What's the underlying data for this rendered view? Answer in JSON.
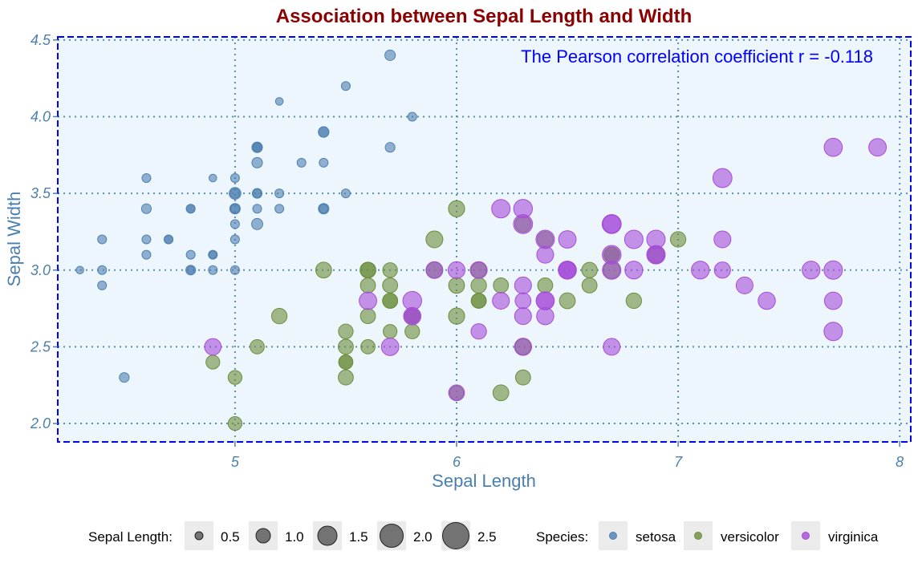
{
  "chart_data": {
    "type": "scatter",
    "title": "Association between Sepal Length and Width",
    "xlabel": "Sepal Length",
    "ylabel": "Sepal Width",
    "annotation": "The Pearson correlation coefficient r =  -0.118",
    "xlim": [
      4.2,
      8.05
    ],
    "ylim": [
      1.88,
      4.52
    ],
    "x_ticks": [
      "5",
      "6",
      "7",
      "8"
    ],
    "x_tick_values": [
      5,
      6,
      7,
      8
    ],
    "y_ticks": [
      "2.0",
      "2.5",
      "3.0",
      "3.5",
      "4.0",
      "4.5"
    ],
    "y_tick_values": [
      2.0,
      2.5,
      3.0,
      3.5,
      4.0,
      4.5
    ],
    "grid": true,
    "legend_position": "bottom",
    "size_legend": {
      "label": "Sepal Length:",
      "values": [
        "0.5",
        "1.0",
        "1.5",
        "2.0",
        "2.5"
      ]
    },
    "color_legend": {
      "label": "Species:",
      "entries": [
        "setosa",
        "versicolor",
        "virginica"
      ]
    },
    "colors": {
      "title": "#8B0000",
      "axis": "#4A7FB0",
      "annotation": "#0000FF",
      "panel_bg": "#EEF6FD",
      "grid": "#5B8FA8",
      "setosa": "#4F81B0",
      "versicolor": "#6B8E3A",
      "virginica": "#A54CD9"
    },
    "series": [
      {
        "name": "setosa",
        "size": [
          0.2,
          0.2,
          0.2,
          0.2,
          0.2,
          0.4,
          0.3,
          0.2,
          0.2,
          0.1,
          0.2,
          0.2,
          0.1,
          0.1,
          0.2,
          0.4,
          0.4,
          0.3,
          0.3,
          0.3,
          0.2,
          0.4,
          0.2,
          0.5,
          0.2,
          0.2,
          0.4,
          0.2,
          0.2,
          0.2,
          0.2,
          0.4,
          0.1,
          0.2,
          0.2,
          0.2,
          0.2,
          0.1,
          0.2,
          0.2,
          0.3,
          0.3,
          0.2,
          0.6,
          0.4,
          0.3,
          0.2,
          0.2,
          0.2,
          0.2
        ],
        "points": [
          [
            5.1,
            3.5
          ],
          [
            4.9,
            3.0
          ],
          [
            4.7,
            3.2
          ],
          [
            4.6,
            3.1
          ],
          [
            5.0,
            3.6
          ],
          [
            5.4,
            3.9
          ],
          [
            4.6,
            3.4
          ],
          [
            5.0,
            3.4
          ],
          [
            4.4,
            2.9
          ],
          [
            4.9,
            3.1
          ],
          [
            5.4,
            3.7
          ],
          [
            4.8,
            3.4
          ],
          [
            4.8,
            3.0
          ],
          [
            4.3,
            3.0
          ],
          [
            5.8,
            4.0
          ],
          [
            5.7,
            4.4
          ],
          [
            5.4,
            3.9
          ],
          [
            5.1,
            3.5
          ],
          [
            5.7,
            3.8
          ],
          [
            5.1,
            3.8
          ],
          [
            5.4,
            3.4
          ],
          [
            5.1,
            3.7
          ],
          [
            4.6,
            3.6
          ],
          [
            5.1,
            3.3
          ],
          [
            4.8,
            3.4
          ],
          [
            5.0,
            3.0
          ],
          [
            5.0,
            3.4
          ],
          [
            5.2,
            3.5
          ],
          [
            5.2,
            3.4
          ],
          [
            4.7,
            3.2
          ],
          [
            4.8,
            3.1
          ],
          [
            5.4,
            3.4
          ],
          [
            5.2,
            4.1
          ],
          [
            5.5,
            4.2
          ],
          [
            4.9,
            3.1
          ],
          [
            5.0,
            3.2
          ],
          [
            5.5,
            3.5
          ],
          [
            4.9,
            3.6
          ],
          [
            4.4,
            3.0
          ],
          [
            5.1,
            3.4
          ],
          [
            5.0,
            3.5
          ],
          [
            4.5,
            2.3
          ],
          [
            4.4,
            3.2
          ],
          [
            5.0,
            3.5
          ],
          [
            5.1,
            3.8
          ],
          [
            4.8,
            3.0
          ],
          [
            5.1,
            3.8
          ],
          [
            4.6,
            3.2
          ],
          [
            5.3,
            3.7
          ],
          [
            5.0,
            3.3
          ]
        ]
      },
      {
        "name": "versicolor",
        "size": [
          1.4,
          1.5,
          1.5,
          1.3,
          1.5,
          1.3,
          1.6,
          1.0,
          1.3,
          1.4,
          1.0,
          1.5,
          1.0,
          1.4,
          1.3,
          1.4,
          1.5,
          1.0,
          1.5,
          1.1,
          1.8,
          1.3,
          1.5,
          1.2,
          1.3,
          1.4,
          1.4,
          1.7,
          1.5,
          1.0,
          1.1,
          1.0,
          1.2,
          1.6,
          1.5,
          1.6,
          1.5,
          1.3,
          1.3,
          1.3,
          1.2,
          1.4,
          1.2,
          1.0,
          1.3,
          1.2,
          1.3,
          1.3,
          1.1,
          1.3
        ],
        "points": [
          [
            7.0,
            3.2
          ],
          [
            6.4,
            3.2
          ],
          [
            6.9,
            3.1
          ],
          [
            5.5,
            2.3
          ],
          [
            6.5,
            2.8
          ],
          [
            5.7,
            2.8
          ],
          [
            6.3,
            3.3
          ],
          [
            4.9,
            2.4
          ],
          [
            6.6,
            2.9
          ],
          [
            5.2,
            2.7
          ],
          [
            5.0,
            2.0
          ],
          [
            5.9,
            3.0
          ],
          [
            6.0,
            2.2
          ],
          [
            6.1,
            2.9
          ],
          [
            5.6,
            2.9
          ],
          [
            6.7,
            3.1
          ],
          [
            5.6,
            3.0
          ],
          [
            5.8,
            2.7
          ],
          [
            6.2,
            2.2
          ],
          [
            5.6,
            2.5
          ],
          [
            5.9,
            3.2
          ],
          [
            6.1,
            2.8
          ],
          [
            6.3,
            2.5
          ],
          [
            6.1,
            2.8
          ],
          [
            6.4,
            2.9
          ],
          [
            6.6,
            3.0
          ],
          [
            6.8,
            2.8
          ],
          [
            6.7,
            3.0
          ],
          [
            6.0,
            2.9
          ],
          [
            5.7,
            2.6
          ],
          [
            5.5,
            2.4
          ],
          [
            5.5,
            2.4
          ],
          [
            5.8,
            2.7
          ],
          [
            6.0,
            2.7
          ],
          [
            5.4,
            3.0
          ],
          [
            6.0,
            3.4
          ],
          [
            6.7,
            3.1
          ],
          [
            6.3,
            2.3
          ],
          [
            5.6,
            3.0
          ],
          [
            5.5,
            2.5
          ],
          [
            5.5,
            2.6
          ],
          [
            6.1,
            3.0
          ],
          [
            5.8,
            2.6
          ],
          [
            5.0,
            2.3
          ],
          [
            5.6,
            2.7
          ],
          [
            5.7,
            3.0
          ],
          [
            5.7,
            2.9
          ],
          [
            6.2,
            2.9
          ],
          [
            5.1,
            2.5
          ],
          [
            5.7,
            2.8
          ]
        ]
      },
      {
        "name": "virginica",
        "size": [
          2.5,
          1.9,
          2.1,
          1.8,
          2.2,
          2.1,
          1.7,
          1.8,
          1.8,
          2.5,
          2.0,
          1.9,
          2.1,
          2.0,
          2.4,
          2.3,
          1.8,
          2.2,
          2.3,
          1.5,
          2.3,
          2.0,
          2.0,
          1.8,
          2.1,
          1.8,
          1.8,
          1.8,
          2.1,
          1.6,
          1.9,
          2.0,
          2.2,
          1.5,
          1.4,
          2.3,
          2.4,
          1.8,
          1.8,
          2.1,
          2.4,
          2.3,
          1.9,
          2.3,
          2.5,
          2.3,
          1.9,
          2.0,
          2.3,
          1.8
        ],
        "points": [
          [
            6.3,
            3.3
          ],
          [
            5.8,
            2.7
          ],
          [
            7.1,
            3.0
          ],
          [
            6.3,
            2.9
          ],
          [
            6.5,
            3.0
          ],
          [
            7.6,
            3.0
          ],
          [
            4.9,
            2.5
          ],
          [
            7.3,
            2.9
          ],
          [
            6.7,
            2.5
          ],
          [
            7.2,
            3.6
          ],
          [
            6.5,
            3.2
          ],
          [
            6.4,
            2.7
          ],
          [
            6.8,
            3.0
          ],
          [
            5.7,
            2.5
          ],
          [
            5.8,
            2.8
          ],
          [
            6.4,
            3.2
          ],
          [
            6.5,
            3.0
          ],
          [
            7.7,
            3.8
          ],
          [
            7.7,
            2.6
          ],
          [
            6.0,
            2.2
          ],
          [
            6.9,
            3.2
          ],
          [
            5.6,
            2.8
          ],
          [
            7.7,
            2.8
          ],
          [
            6.3,
            2.7
          ],
          [
            6.7,
            3.3
          ],
          [
            7.2,
            3.2
          ],
          [
            6.2,
            2.8
          ],
          [
            6.1,
            3.0
          ],
          [
            6.4,
            2.8
          ],
          [
            7.2,
            3.0
          ],
          [
            7.4,
            2.8
          ],
          [
            7.9,
            3.8
          ],
          [
            6.4,
            2.8
          ],
          [
            6.3,
            2.8
          ],
          [
            6.1,
            2.6
          ],
          [
            7.7,
            3.0
          ],
          [
            6.3,
            3.4
          ],
          [
            6.4,
            3.1
          ],
          [
            6.0,
            3.0
          ],
          [
            6.9,
            3.1
          ],
          [
            6.7,
            3.1
          ],
          [
            6.9,
            3.1
          ],
          [
            5.8,
            2.7
          ],
          [
            6.8,
            3.2
          ],
          [
            6.7,
            3.3
          ],
          [
            6.7,
            3.0
          ],
          [
            6.3,
            2.5
          ],
          [
            6.5,
            3.0
          ],
          [
            6.2,
            3.4
          ],
          [
            5.9,
            3.0
          ]
        ]
      }
    ]
  }
}
